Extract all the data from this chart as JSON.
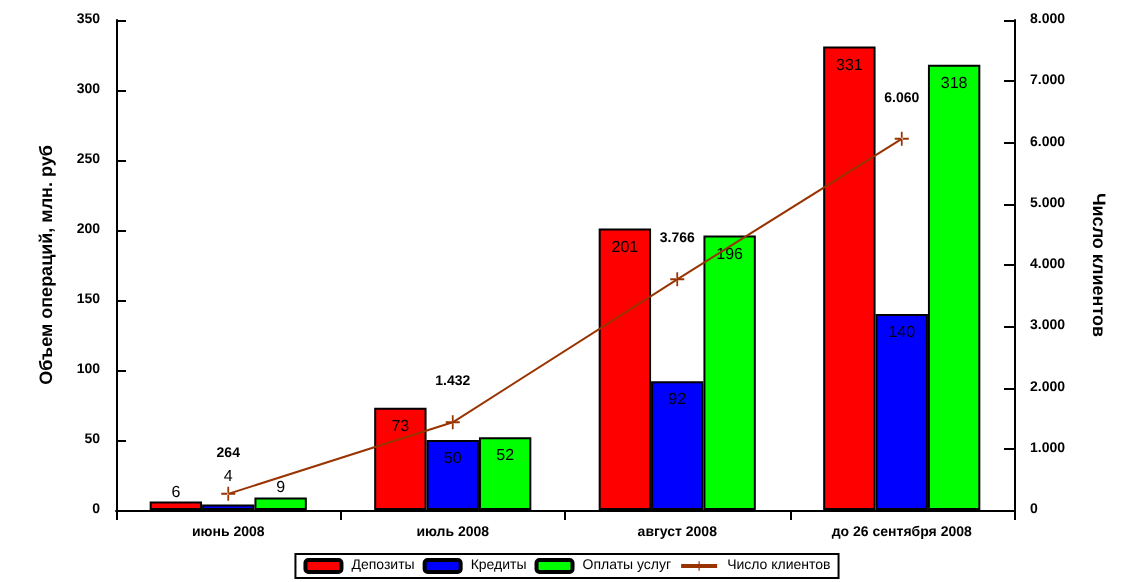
{
  "chart_data": {
    "type": "bar",
    "ylabel": "Объем операций, млн. руб",
    "y2label": "Число клиентов",
    "categories": [
      "июнь 2008",
      "июль 2008",
      "август 2008",
      "до 26 сентября 2008"
    ],
    "series": [
      {
        "name": "Депозиты",
        "color": "#ff0000",
        "values": [
          6,
          73,
          201,
          331
        ]
      },
      {
        "name": "Кредиты",
        "color": "#0000ff",
        "values": [
          4,
          50,
          92,
          140
        ]
      },
      {
        "name": "Оплаты услуг",
        "color": "#00ff00",
        "values": [
          9,
          52,
          196,
          318
        ]
      },
      {
        "name": "Число клиентов",
        "type": "line",
        "axis": "y2",
        "color": "#993300",
        "marker": "cross",
        "values": [
          264,
          1432,
          3766,
          6060
        ],
        "value_labels": [
          "264",
          "1.432",
          "3.766",
          "6.060"
        ]
      }
    ],
    "data_labels": true,
    "ylim": [
      0,
      350
    ],
    "yticks": [
      0,
      50,
      100,
      150,
      200,
      250,
      300,
      350
    ],
    "y2lim": [
      0,
      8000
    ],
    "y2ticks": [
      0,
      {
        "value": 1000,
        "label": "1.000"
      },
      {
        "value": 2000,
        "label": "2.000"
      },
      {
        "value": 3000,
        "label": "3.000"
      },
      {
        "value": 4000,
        "label": "4.000"
      },
      {
        "value": 5000,
        "label": "5.000"
      },
      {
        "value": 6000,
        "label": "6.000"
      },
      {
        "value": 7000,
        "label": "7.000"
      },
      {
        "value": 8000,
        "label": "8.000"
      }
    ],
    "grid": false,
    "legend": "bottom"
  }
}
